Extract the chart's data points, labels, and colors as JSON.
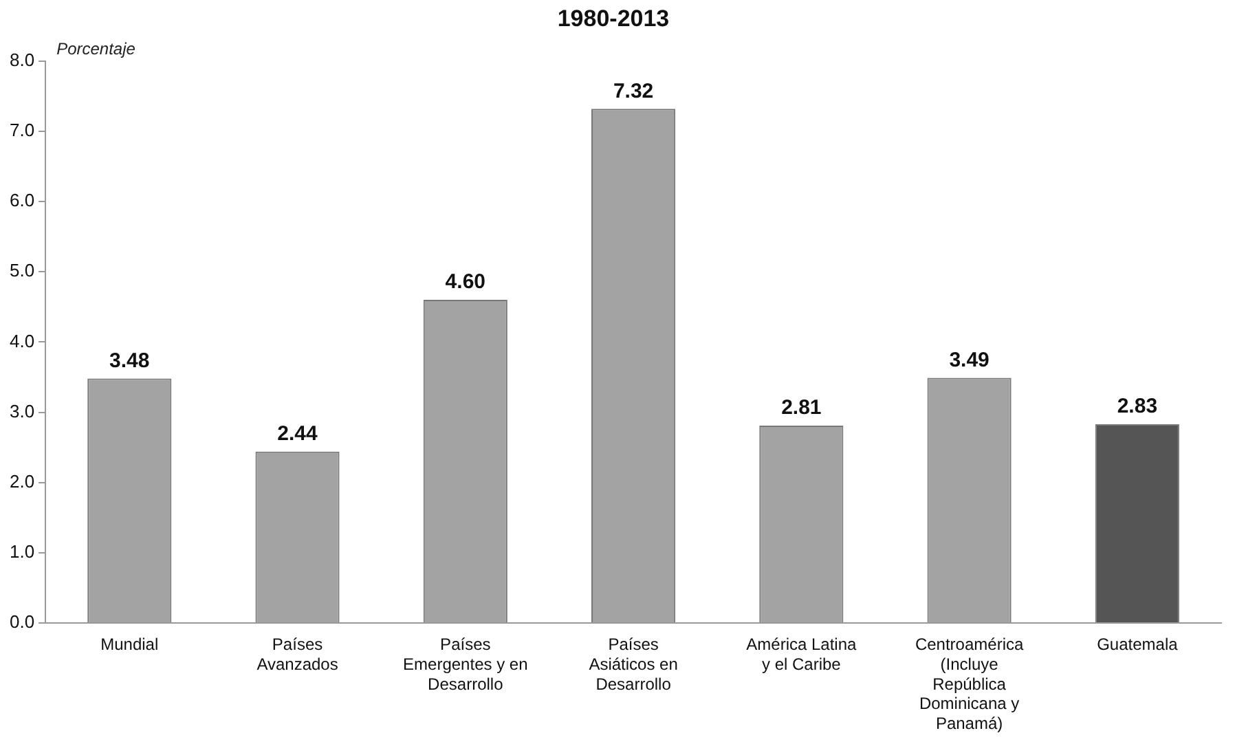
{
  "chart_data": {
    "type": "bar",
    "title": "1980-2013",
    "ylabel": "Porcentaje",
    "categories": [
      "Mundial",
      "Países Avanzados",
      "Países Emergentes y en Desarrollo",
      "Países Asiáticos en Desarrollo",
      "América Latina y el Caribe",
      "Centroamérica (Incluye República Dominicana y Panamá)",
      "Guatemala"
    ],
    "values": [
      3.48,
      2.44,
      4.6,
      7.32,
      2.81,
      3.49,
      2.83
    ],
    "colors": [
      "#a3a3a3",
      "#a3a3a3",
      "#a3a3a3",
      "#a3a3a3",
      "#a3a3a3",
      "#a3a3a3",
      "#555555"
    ],
    "value_labels": [
      "3.48",
      "2.44",
      "4.60",
      "7.32",
      "2.81",
      "3.49",
      "2.83"
    ],
    "ylim": [
      0,
      8
    ],
    "yticks": [
      {
        "value": 0,
        "label": "0.0"
      },
      {
        "value": 1,
        "label": "1.0"
      },
      {
        "value": 2,
        "label": "2.0"
      },
      {
        "value": 3,
        "label": "3.0"
      },
      {
        "value": 4,
        "label": "4.0"
      },
      {
        "value": 5,
        "label": "5.0"
      },
      {
        "value": 6,
        "label": "6.0"
      },
      {
        "value": 7,
        "label": "7.0"
      },
      {
        "value": 8,
        "label": "8.0"
      }
    ],
    "grid": false,
    "legend": false
  }
}
